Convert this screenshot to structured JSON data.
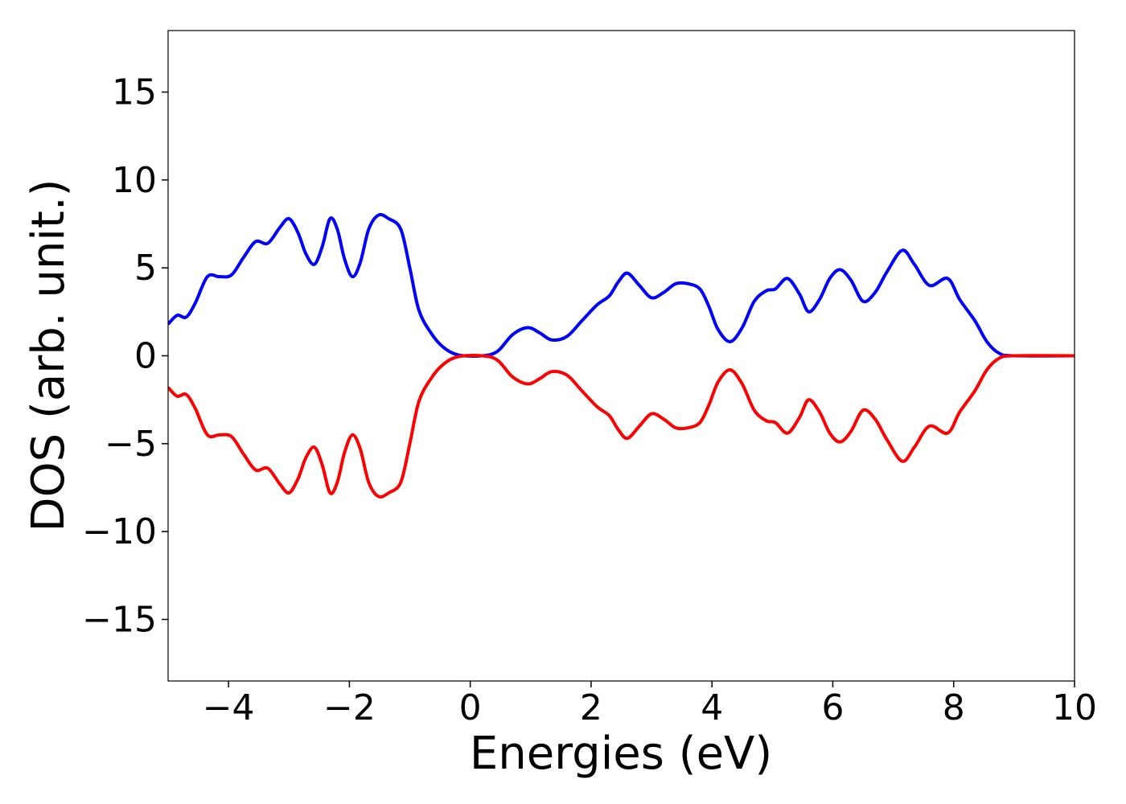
{
  "chart_data": {
    "type": "line",
    "title": "",
    "xlabel": "Energies (eV)",
    "ylabel": "DOS (arb. unit.)",
    "xlim": [
      -5,
      10
    ],
    "ylim": [
      -18.5,
      18.5
    ],
    "grid": false,
    "legend": "none",
    "x_ticks": [
      -4,
      -2,
      0,
      2,
      4,
      6,
      8,
      10
    ],
    "x_tick_labels": [
      "−4",
      "−2",
      "0",
      "2",
      "4",
      "6",
      "8",
      "10"
    ],
    "y_ticks": [
      15,
      10,
      5,
      0,
      -5,
      -10,
      -15
    ],
    "y_tick_labels": [
      "15",
      "10",
      "5",
      "0",
      "−5",
      "−10",
      "−15"
    ],
    "series": [
      {
        "color": "#0000ff",
        "points": [
          [
            -5.0,
            1.8
          ],
          [
            -4.85,
            2.3
          ],
          [
            -4.7,
            2.2
          ],
          [
            -4.55,
            3.0
          ],
          [
            -4.35,
            4.5
          ],
          [
            -4.15,
            4.5
          ],
          [
            -3.95,
            4.6
          ],
          [
            -3.75,
            5.6
          ],
          [
            -3.55,
            6.5
          ],
          [
            -3.35,
            6.4
          ],
          [
            -3.15,
            7.3
          ],
          [
            -3.0,
            7.8
          ],
          [
            -2.85,
            7.0
          ],
          [
            -2.72,
            5.8
          ],
          [
            -2.58,
            5.2
          ],
          [
            -2.45,
            6.2
          ],
          [
            -2.32,
            7.8
          ],
          [
            -2.2,
            7.2
          ],
          [
            -2.08,
            5.5
          ],
          [
            -1.95,
            4.5
          ],
          [
            -1.82,
            5.3
          ],
          [
            -1.68,
            7.2
          ],
          [
            -1.52,
            8.0
          ],
          [
            -1.35,
            7.8
          ],
          [
            -1.15,
            7.2
          ],
          [
            -1.0,
            5.0
          ],
          [
            -0.85,
            2.6
          ],
          [
            -0.65,
            1.3
          ],
          [
            -0.45,
            0.5
          ],
          [
            -0.2,
            0.05
          ],
          [
            0.2,
            0.0
          ],
          [
            0.45,
            0.25
          ],
          [
            0.7,
            1.2
          ],
          [
            0.95,
            1.6
          ],
          [
            1.15,
            1.3
          ],
          [
            1.35,
            0.9
          ],
          [
            1.6,
            1.1
          ],
          [
            1.85,
            2.0
          ],
          [
            2.1,
            2.9
          ],
          [
            2.3,
            3.4
          ],
          [
            2.45,
            4.2
          ],
          [
            2.6,
            4.7
          ],
          [
            2.8,
            4.0
          ],
          [
            3.0,
            3.3
          ],
          [
            3.2,
            3.6
          ],
          [
            3.4,
            4.1
          ],
          [
            3.6,
            4.1
          ],
          [
            3.8,
            3.8
          ],
          [
            3.95,
            2.8
          ],
          [
            4.1,
            1.5
          ],
          [
            4.3,
            0.8
          ],
          [
            4.5,
            1.6
          ],
          [
            4.7,
            3.1
          ],
          [
            4.9,
            3.7
          ],
          [
            5.05,
            3.8
          ],
          [
            5.25,
            4.4
          ],
          [
            5.45,
            3.5
          ],
          [
            5.6,
            2.5
          ],
          [
            5.78,
            3.2
          ],
          [
            5.95,
            4.4
          ],
          [
            6.12,
            4.9
          ],
          [
            6.3,
            4.3
          ],
          [
            6.5,
            3.1
          ],
          [
            6.7,
            3.6
          ],
          [
            6.9,
            4.8
          ],
          [
            7.15,
            6.0
          ],
          [
            7.35,
            5.2
          ],
          [
            7.6,
            4.0
          ],
          [
            7.9,
            4.4
          ],
          [
            8.1,
            3.2
          ],
          [
            8.35,
            2.0
          ],
          [
            8.55,
            0.8
          ],
          [
            8.75,
            0.15
          ],
          [
            9.0,
            0.0
          ],
          [
            10.0,
            0.0
          ]
        ]
      },
      {
        "color": "#ff0000",
        "points": [
          [
            -5.0,
            -1.8
          ],
          [
            -4.85,
            -2.3
          ],
          [
            -4.7,
            -2.2
          ],
          [
            -4.55,
            -3.0
          ],
          [
            -4.35,
            -4.5
          ],
          [
            -4.15,
            -4.5
          ],
          [
            -3.95,
            -4.6
          ],
          [
            -3.75,
            -5.6
          ],
          [
            -3.55,
            -6.5
          ],
          [
            -3.35,
            -6.4
          ],
          [
            -3.15,
            -7.3
          ],
          [
            -3.0,
            -7.8
          ],
          [
            -2.85,
            -7.0
          ],
          [
            -2.72,
            -5.8
          ],
          [
            -2.58,
            -5.2
          ],
          [
            -2.45,
            -6.2
          ],
          [
            -2.32,
            -7.8
          ],
          [
            -2.2,
            -7.2
          ],
          [
            -2.08,
            -5.5
          ],
          [
            -1.95,
            -4.5
          ],
          [
            -1.82,
            -5.3
          ],
          [
            -1.68,
            -7.2
          ],
          [
            -1.52,
            -8.0
          ],
          [
            -1.35,
            -7.8
          ],
          [
            -1.15,
            -7.2
          ],
          [
            -1.0,
            -5.0
          ],
          [
            -0.85,
            -2.6
          ],
          [
            -0.65,
            -1.3
          ],
          [
            -0.45,
            -0.5
          ],
          [
            -0.2,
            -0.05
          ],
          [
            0.2,
            0.0
          ],
          [
            0.45,
            -0.25
          ],
          [
            0.7,
            -1.2
          ],
          [
            0.95,
            -1.6
          ],
          [
            1.15,
            -1.3
          ],
          [
            1.35,
            -0.9
          ],
          [
            1.6,
            -1.1
          ],
          [
            1.85,
            -2.0
          ],
          [
            2.1,
            -2.9
          ],
          [
            2.3,
            -3.4
          ],
          [
            2.45,
            -4.2
          ],
          [
            2.6,
            -4.7
          ],
          [
            2.8,
            -4.0
          ],
          [
            3.0,
            -3.3
          ],
          [
            3.2,
            -3.6
          ],
          [
            3.4,
            -4.1
          ],
          [
            3.6,
            -4.1
          ],
          [
            3.8,
            -3.8
          ],
          [
            3.95,
            -2.8
          ],
          [
            4.1,
            -1.5
          ],
          [
            4.3,
            -0.8
          ],
          [
            4.5,
            -1.6
          ],
          [
            4.7,
            -3.1
          ],
          [
            4.9,
            -3.7
          ],
          [
            5.05,
            -3.8
          ],
          [
            5.25,
            -4.4
          ],
          [
            5.45,
            -3.5
          ],
          [
            5.6,
            -2.5
          ],
          [
            5.78,
            -3.2
          ],
          [
            5.95,
            -4.4
          ],
          [
            6.12,
            -4.9
          ],
          [
            6.3,
            -4.3
          ],
          [
            6.5,
            -3.1
          ],
          [
            6.7,
            -3.6
          ],
          [
            6.9,
            -4.8
          ],
          [
            7.15,
            -6.0
          ],
          [
            7.35,
            -5.2
          ],
          [
            7.6,
            -4.0
          ],
          [
            7.9,
            -4.4
          ],
          [
            8.1,
            -3.2
          ],
          [
            8.35,
            -2.0
          ],
          [
            8.55,
            -0.8
          ],
          [
            8.75,
            -0.15
          ],
          [
            9.0,
            0.0
          ],
          [
            10.0,
            0.0
          ]
        ]
      }
    ]
  }
}
